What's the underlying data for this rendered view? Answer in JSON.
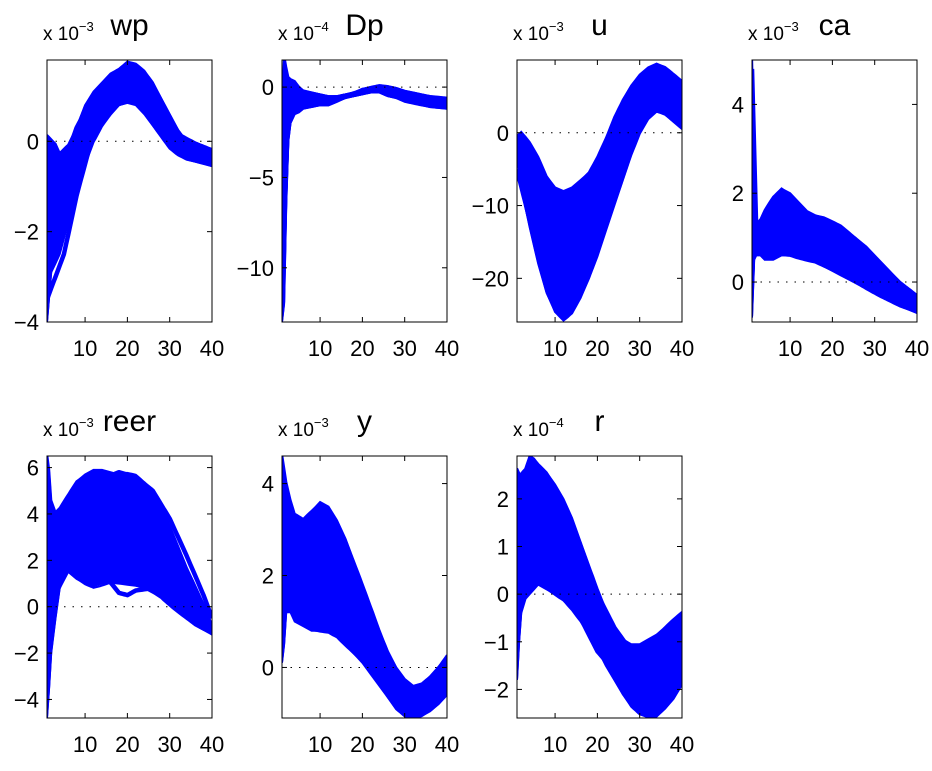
{
  "figure": {
    "background": "#ffffff",
    "line_color": "#0000ff",
    "zero_line_color": "#000000"
  },
  "chart_data": [
    {
      "type": "line",
      "title": "wp",
      "exponent": "x 10",
      "exponent_power": "−3",
      "xlim": [
        1,
        40
      ],
      "ylim": [
        -4.0,
        1.8
      ],
      "xticks": [
        10,
        20,
        30,
        40
      ],
      "yticks": [
        -4,
        -2,
        0
      ],
      "ytick_labels": [
        "−4",
        "−2",
        "0"
      ],
      "zero_line": 0,
      "band": {
        "x": [
          1,
          2,
          3,
          4,
          6,
          8,
          10,
          12,
          14,
          16,
          18,
          20,
          22,
          24,
          26,
          28,
          30,
          32,
          34,
          36,
          38,
          40
        ],
        "lower": [
          -4.0,
          -2.9,
          -2.7,
          -2.5,
          -1.8,
          -1.0,
          -0.5,
          0.0,
          0.35,
          0.6,
          0.8,
          0.85,
          0.8,
          0.6,
          0.35,
          0.1,
          -0.15,
          -0.3,
          -0.4,
          -0.45,
          -0.5,
          -0.55
        ],
        "upper": [
          0.1,
          0.0,
          -0.1,
          -0.3,
          -0.1,
          0.3,
          0.8,
          1.1,
          1.3,
          1.5,
          1.6,
          1.75,
          1.7,
          1.55,
          1.3,
          0.95,
          0.6,
          0.25,
          0.0,
          -0.1,
          -0.15,
          -0.25
        ]
      },
      "lines": [
        {
          "name": "",
          "x": [
            1,
            3,
            5,
            8,
            12,
            16,
            20,
            24,
            28,
            32,
            36,
            40
          ],
          "y": [
            -3.5,
            -3.0,
            -2.5,
            -1.2,
            0.2,
            0.9,
            1.25,
            1.05,
            0.55,
            0.0,
            -0.25,
            -0.4
          ]
        },
        {
          "name": "",
          "x": [
            1,
            3,
            5,
            8,
            12,
            16,
            20,
            24,
            28,
            32,
            36,
            40
          ],
          "y": [
            -1.5,
            -1.0,
            -0.5,
            0.3,
            1.0,
            1.3,
            1.6,
            1.35,
            0.8,
            0.15,
            -0.05,
            -0.2
          ]
        }
      ]
    },
    {
      "type": "line",
      "title": "Dp",
      "exponent": "x 10",
      "exponent_power": "−4",
      "xlim": [
        1,
        40
      ],
      "ylim": [
        -13,
        1.5
      ],
      "xticks": [
        10,
        20,
        30,
        40
      ],
      "yticks": [
        -10,
        -5,
        0
      ],
      "ytick_labels": [
        "−10",
        "−5",
        "0"
      ],
      "zero_line": 0,
      "band": {
        "x": [
          1,
          1.5,
          2,
          2.5,
          3,
          4,
          5,
          6,
          8,
          10,
          12,
          14,
          16,
          18,
          20,
          22,
          24,
          26,
          28,
          30,
          32,
          34,
          36,
          38,
          40
        ],
        "lower": [
          -13.0,
          -12.0,
          -6.5,
          -3.0,
          -2.0,
          -1.5,
          -1.4,
          -1.2,
          -1.1,
          -1.0,
          -1.0,
          -0.8,
          -0.6,
          -0.5,
          -0.4,
          -0.3,
          -0.3,
          -0.5,
          -0.6,
          -0.8,
          -0.9,
          -1.0,
          -1.1,
          -1.15,
          -1.2
        ],
        "upper": [
          -2.0,
          1.6,
          1.0,
          0.5,
          0.4,
          0.3,
          0.0,
          -0.2,
          -0.3,
          -0.4,
          -0.5,
          -0.5,
          -0.4,
          -0.3,
          -0.1,
          0.0,
          0.1,
          0.05,
          -0.05,
          -0.2,
          -0.3,
          -0.4,
          -0.5,
          -0.55,
          -0.6
        ]
      },
      "lines": [
        {
          "name": "",
          "x": [
            1,
            2,
            3,
            4,
            6,
            8,
            12,
            16,
            20,
            24,
            28,
            32,
            36,
            40
          ],
          "y": [
            -9.0,
            -1.5,
            0.2,
            -0.6,
            -0.5,
            -0.7,
            -0.7,
            -0.5,
            -0.2,
            -0.1,
            -0.4,
            -0.6,
            -0.8,
            -0.9
          ]
        }
      ]
    },
    {
      "type": "line",
      "title": "u",
      "exponent": "x 10",
      "exponent_power": "−3",
      "xlim": [
        1,
        40
      ],
      "ylim": [
        -26,
        10
      ],
      "xticks": [
        10,
        20,
        30,
        40
      ],
      "yticks": [
        -20,
        -10,
        0
      ],
      "ytick_labels": [
        "−20",
        "−10",
        "0"
      ],
      "zero_line": 0,
      "band": {
        "x": [
          1,
          2,
          4,
          6,
          8,
          10,
          12,
          14,
          16,
          18,
          20,
          22,
          24,
          26,
          28,
          30,
          32,
          34,
          36,
          38,
          40
        ],
        "lower": [
          -3.0,
          -7.5,
          -13.0,
          -18.0,
          -22.0,
          -24.5,
          -25.5,
          -24.5,
          -22.5,
          -20.0,
          -17.0,
          -13.5,
          -10.0,
          -6.5,
          -3.0,
          0.0,
          2.0,
          3.0,
          2.5,
          1.5,
          0.5
        ],
        "upper": [
          -0.5,
          0.0,
          -1.5,
          -3.5,
          -6.0,
          -7.5,
          -8.0,
          -7.5,
          -6.5,
          -5.5,
          -3.5,
          -1.0,
          2.0,
          4.5,
          6.5,
          8.0,
          9.0,
          9.5,
          9.0,
          8.0,
          7.0
        ]
      },
      "lines": [
        {
          "name": "",
          "x": [
            1,
            4,
            7,
            10,
            13,
            16,
            20,
            24,
            28,
            32,
            36,
            40
          ],
          "y": [
            -2.0,
            -4.0,
            -9.0,
            -12.0,
            -11.0,
            -8.0,
            -4.0,
            1.0,
            5.0,
            7.5,
            7.0,
            5.0
          ]
        },
        {
          "name": "",
          "x": [
            1,
            4,
            7,
            10,
            13,
            16,
            20,
            24,
            28,
            32,
            36,
            40
          ],
          "y": [
            -5.0,
            -12.0,
            -18.0,
            -21.0,
            -20.0,
            -16.0,
            -10.0,
            -4.0,
            1.5,
            5.0,
            5.0,
            3.0
          ]
        }
      ]
    },
    {
      "type": "line",
      "title": "ca",
      "exponent": "x 10",
      "exponent_power": "−3",
      "xlim": [
        1,
        40
      ],
      "ylim": [
        -0.9,
        5.0
      ],
      "xticks": [
        10,
        20,
        30,
        40
      ],
      "yticks": [
        0,
        2,
        4
      ],
      "ytick_labels": [
        "0",
        "2",
        "4"
      ],
      "zero_line": 0,
      "band": {
        "x": [
          1,
          1.5,
          2,
          3,
          4,
          6,
          8,
          10,
          12,
          14,
          16,
          18,
          20,
          22,
          24,
          26,
          28,
          30,
          32,
          34,
          36,
          38,
          40
        ],
        "lower": [
          -0.8,
          0.5,
          0.6,
          0.6,
          0.5,
          0.5,
          0.6,
          0.6,
          0.55,
          0.5,
          0.45,
          0.35,
          0.25,
          0.15,
          0.05,
          -0.05,
          -0.15,
          -0.25,
          -0.35,
          -0.45,
          -0.55,
          -0.62,
          -0.7
        ],
        "upper": [
          5.0,
          2.0,
          1.3,
          1.4,
          1.6,
          1.9,
          2.1,
          2.0,
          1.8,
          1.6,
          1.5,
          1.45,
          1.35,
          1.25,
          1.1,
          0.95,
          0.8,
          0.6,
          0.4,
          0.2,
          0.0,
          -0.15,
          -0.3
        ]
      },
      "lines": [
        {
          "name": "",
          "x": [
            1,
            2,
            4,
            6,
            8,
            10,
            14,
            18,
            22,
            26,
            30,
            34,
            38,
            40
          ],
          "y": [
            4.8,
            1.2,
            1.0,
            1.5,
            2.0,
            1.8,
            1.3,
            1.1,
            0.9,
            0.6,
            0.25,
            -0.1,
            -0.4,
            -0.55
          ]
        }
      ]
    },
    {
      "type": "line",
      "title": "reer",
      "exponent": "x 10",
      "exponent_power": "−3",
      "xlim": [
        1,
        40
      ],
      "ylim": [
        -4.8,
        6.5
      ],
      "xticks": [
        10,
        20,
        30,
        40
      ],
      "yticks": [
        -4,
        -2,
        0,
        2,
        4,
        6
      ],
      "ytick_labels": [
        "−4",
        "−2",
        "0",
        "2",
        "4",
        "6"
      ],
      "zero_line": 0,
      "band": {
        "x": [
          1,
          1.5,
          2,
          3,
          4,
          6,
          8,
          10,
          12,
          14,
          16,
          18,
          20,
          22,
          24,
          26,
          28,
          30,
          32,
          34,
          36,
          38,
          40
        ],
        "lower": [
          -4.8,
          -3.5,
          -2.0,
          -0.5,
          0.8,
          1.5,
          1.2,
          1.0,
          0.9,
          1.0,
          1.1,
          1.0,
          0.95,
          0.9,
          0.8,
          0.6,
          0.4,
          0.1,
          -0.2,
          -0.5,
          -0.8,
          -1.0,
          -1.2
        ],
        "upper": [
          6.5,
          5.8,
          4.5,
          4.0,
          4.2,
          4.8,
          5.4,
          5.7,
          5.9,
          5.9,
          5.8,
          5.7,
          5.7,
          5.6,
          5.3,
          4.9,
          4.3,
          3.5,
          2.6,
          1.7,
          0.9,
          0.1,
          -0.8
        ]
      },
      "lines": [
        {
          "name": "",
          "x": [
            1,
            3,
            6,
            10,
            14,
            18,
            20,
            22,
            26,
            30,
            34,
            38,
            40
          ],
          "y": [
            -2.0,
            0.5,
            1.8,
            1.7,
            1.5,
            0.6,
            0.5,
            0.7,
            0.8,
            0.5,
            0.0,
            -0.6,
            -0.9
          ]
        },
        {
          "name": "",
          "x": [
            1,
            3,
            6,
            10,
            14,
            18,
            22,
            26,
            30,
            34,
            38,
            40
          ],
          "y": [
            5.0,
            3.5,
            3.8,
            4.8,
            5.5,
            5.8,
            5.6,
            5.0,
            3.8,
            2.2,
            0.5,
            -0.5
          ]
        }
      ]
    },
    {
      "type": "line",
      "title": "y",
      "exponent": "x 10",
      "exponent_power": "−3",
      "xlim": [
        1,
        40
      ],
      "ylim": [
        -1.1,
        4.6
      ],
      "xticks": [
        10,
        20,
        30,
        40
      ],
      "yticks": [
        0,
        2,
        4
      ],
      "ytick_labels": [
        "0",
        "2",
        "4"
      ],
      "zero_line": 0,
      "band": {
        "x": [
          1,
          1.5,
          2,
          3,
          4,
          6,
          8,
          10,
          12,
          14,
          16,
          18,
          20,
          22,
          24,
          26,
          28,
          30,
          32,
          34,
          36,
          38,
          40
        ],
        "lower": [
          0.1,
          0.5,
          1.2,
          1.2,
          1.0,
          0.9,
          0.8,
          0.8,
          0.8,
          0.7,
          0.5,
          0.3,
          0.1,
          -0.15,
          -0.4,
          -0.65,
          -0.9,
          -1.05,
          -1.1,
          -1.05,
          -0.95,
          -0.8,
          -0.6
        ],
        "upper": [
          4.6,
          4.3,
          4.0,
          3.6,
          3.3,
          3.2,
          3.4,
          3.6,
          3.5,
          3.2,
          2.8,
          2.3,
          1.8,
          1.3,
          0.8,
          0.35,
          0.0,
          -0.25,
          -0.4,
          -0.35,
          -0.2,
          0.0,
          0.25
        ]
      },
      "lines": [
        {
          "name": "",
          "x": [
            1,
            3,
            6,
            9,
            12,
            15,
            18,
            22,
            26,
            30,
            32,
            34,
            37,
            40
          ],
          "y": [
            3.0,
            2.2,
            1.8,
            2.0,
            2.2,
            1.8,
            1.3,
            0.6,
            0.0,
            -0.5,
            -0.6,
            -0.55,
            -0.3,
            0.0
          ]
        }
      ]
    },
    {
      "type": "line",
      "title": "r",
      "exponent": "x 10",
      "exponent_power": "−4",
      "xlim": [
        1,
        40
      ],
      "ylim": [
        -2.6,
        2.9
      ],
      "xticks": [
        10,
        20,
        30,
        40
      ],
      "yticks": [
        -2,
        -1,
        0,
        1,
        2
      ],
      "ytick_labels": [
        "−2",
        "−1",
        "0",
        "1",
        "2"
      ],
      "zero_line": 0,
      "band": {
        "x": [
          1,
          1.5,
          2,
          3,
          4,
          5,
          6,
          8,
          10,
          12,
          14,
          16,
          18,
          20,
          22,
          24,
          26,
          28,
          30,
          32,
          34,
          36,
          38,
          40
        ],
        "lower": [
          -1.8,
          -1.0,
          -0.4,
          -0.1,
          0.0,
          0.1,
          0.2,
          0.1,
          0.0,
          -0.1,
          -0.3,
          -0.55,
          -0.85,
          -1.15,
          -1.5,
          -1.8,
          -2.1,
          -2.35,
          -2.5,
          -2.55,
          -2.55,
          -2.4,
          -2.2,
          -1.9
        ],
        "upper": [
          2.6,
          2.5,
          2.3,
          2.6,
          2.85,
          2.8,
          2.7,
          2.55,
          2.3,
          2.0,
          1.6,
          1.1,
          0.6,
          0.1,
          -0.35,
          -0.7,
          -0.95,
          -1.05,
          -1.05,
          -0.95,
          -0.85,
          -0.7,
          -0.55,
          -0.4
        ]
      },
      "lines": [
        {
          "name": "",
          "x": [
            1,
            3,
            5,
            7,
            8,
            9,
            10,
            12,
            16,
            20,
            24,
            28,
            32,
            36,
            40
          ],
          "y": [
            2.0,
            1.0,
            0.5,
            0.2,
            0.15,
            0.25,
            0.3,
            0.1,
            -0.5,
            -1.2,
            -1.6,
            -1.8,
            -1.8,
            -1.6,
            -1.3
          ]
        },
        {
          "name": "",
          "x": [
            1,
            3,
            5,
            8,
            12,
            16,
            20,
            24,
            28,
            32,
            36,
            40
          ],
          "y": [
            2.4,
            2.6,
            2.4,
            2.1,
            1.6,
            0.8,
            0.0,
            -0.7,
            -1.2,
            -1.5,
            -1.4,
            -1.1
          ]
        }
      ]
    }
  ]
}
